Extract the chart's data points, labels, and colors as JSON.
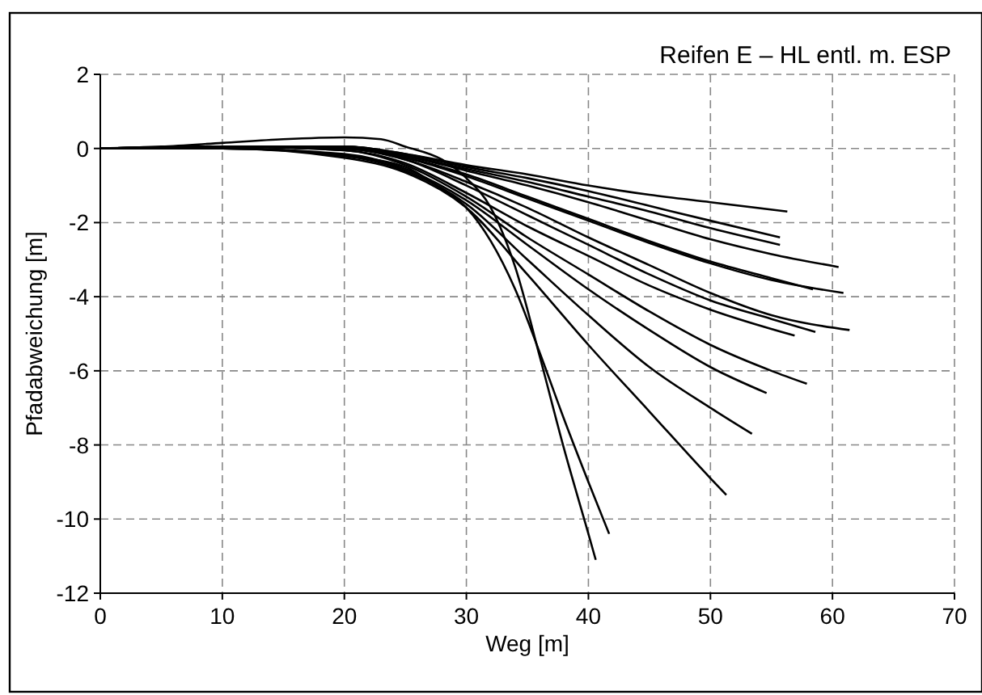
{
  "chart_data": {
    "type": "line",
    "title": "Reifen E – HL entl. m. ESP",
    "xlabel": "Weg [m]",
    "ylabel": "Pfadabweichung [m]",
    "xlim": [
      0,
      70
    ],
    "ylim": [
      -12,
      2
    ],
    "xticks": [
      0,
      10,
      20,
      30,
      40,
      50,
      60,
      70
    ],
    "yticks": [
      -12,
      -10,
      -8,
      -6,
      -4,
      -2,
      0,
      2
    ],
    "grid": true,
    "marker": "none",
    "line_style": "solid",
    "series": [
      {
        "color": "#000000",
        "x": [
          0,
          10,
          20,
          25,
          30,
          35,
          40,
          45,
          50,
          56.3
        ],
        "values": [
          0,
          0.05,
          0.05,
          -0.15,
          -0.45,
          -0.7,
          -1.0,
          -1.25,
          -1.45,
          -1.7
        ]
      },
      {
        "color": "#000000",
        "x": [
          0,
          10,
          20,
          25,
          30,
          35,
          40,
          45,
          50,
          55.7
        ],
        "values": [
          0,
          0.05,
          0.05,
          -0.15,
          -0.5,
          -0.8,
          -1.15,
          -1.55,
          -1.95,
          -2.4
        ]
      },
      {
        "color": "#000000",
        "x": [
          0,
          10,
          20,
          25,
          30,
          35,
          40,
          45,
          50,
          55.7
        ],
        "values": [
          0,
          0.05,
          0.05,
          -0.2,
          -0.55,
          -0.9,
          -1.3,
          -1.7,
          -2.15,
          -2.6
        ]
      },
      {
        "color": "#000000",
        "x": [
          0,
          10,
          20,
          25,
          30,
          35,
          40,
          45,
          50,
          55,
          60.5
        ],
        "values": [
          0,
          0.05,
          0.05,
          -0.2,
          -0.6,
          -1.0,
          -1.45,
          -1.95,
          -2.45,
          -2.85,
          -3.2
        ]
      },
      {
        "color": "#000000",
        "x": [
          0,
          10,
          20,
          25,
          30,
          35,
          40,
          45,
          50,
          55,
          58.4
        ],
        "values": [
          0,
          0.05,
          0.0,
          -0.25,
          -0.7,
          -1.3,
          -1.9,
          -2.5,
          -3.05,
          -3.5,
          -3.8
        ]
      },
      {
        "color": "#000000",
        "x": [
          0,
          10,
          20,
          25,
          30,
          35,
          40,
          45,
          50,
          55,
          60.9
        ],
        "values": [
          0,
          0.05,
          0.0,
          -0.25,
          -0.75,
          -1.35,
          -1.95,
          -2.55,
          -3.1,
          -3.55,
          -3.9
        ]
      },
      {
        "color": "#000000",
        "x": [
          0,
          10,
          20,
          25,
          30,
          35,
          40,
          45,
          50,
          55,
          61.4
        ],
        "values": [
          0,
          0.05,
          0.0,
          -0.3,
          -0.9,
          -1.6,
          -2.4,
          -3.15,
          -3.9,
          -4.5,
          -4.9
        ]
      },
      {
        "color": "#000000",
        "x": [
          0,
          10,
          20,
          25,
          30,
          35,
          40,
          45,
          50,
          55,
          58.6
        ],
        "values": [
          0,
          0.05,
          0.0,
          -0.3,
          -1.0,
          -1.8,
          -2.6,
          -3.4,
          -4.1,
          -4.6,
          -4.95
        ]
      },
      {
        "color": "#000000",
        "x": [
          0,
          10,
          20,
          25,
          30,
          35,
          40,
          45,
          50,
          56.9
        ],
        "values": [
          0,
          0.05,
          -0.05,
          -0.4,
          -1.2,
          -2.1,
          -2.9,
          -3.7,
          -4.35,
          -5.05
        ]
      },
      {
        "color": "#000000",
        "x": [
          0,
          10,
          20,
          25,
          30,
          35,
          40,
          45,
          50,
          55,
          57.9
        ],
        "values": [
          0,
          0.05,
          -0.05,
          -0.45,
          -1.3,
          -2.4,
          -3.4,
          -4.4,
          -5.3,
          -6.0,
          -6.35
        ]
      },
      {
        "color": "#000000",
        "x": [
          0,
          10,
          20,
          25,
          30,
          35,
          40,
          45,
          50,
          54.6
        ],
        "values": [
          0,
          0.0,
          -0.15,
          -0.55,
          -1.4,
          -2.6,
          -3.8,
          -4.9,
          -5.9,
          -6.6
        ]
      },
      {
        "color": "#000000",
        "x": [
          0,
          10,
          20,
          25,
          30,
          35,
          40,
          45,
          50,
          53.4
        ],
        "values": [
          0,
          0.0,
          -0.2,
          -0.6,
          -1.5,
          -3.0,
          -4.5,
          -5.9,
          -7.0,
          -7.7
        ]
      },
      {
        "color": "#000000",
        "x": [
          0,
          10,
          20,
          25,
          30,
          35,
          40,
          45,
          50,
          51.3
        ],
        "values": [
          0,
          0.0,
          -0.25,
          -0.65,
          -1.6,
          -3.4,
          -5.3,
          -7.1,
          -8.9,
          -9.35
        ]
      },
      {
        "color": "#000000",
        "x": [
          0,
          10,
          20,
          25,
          28,
          30,
          32,
          34,
          36,
          38,
          40,
          41.7
        ],
        "values": [
          0,
          0.0,
          -0.2,
          -0.5,
          -1.1,
          -1.6,
          -2.5,
          -3.8,
          -5.5,
          -7.3,
          -9.0,
          -10.4
        ]
      },
      {
        "color": "#000000",
        "x": [
          0,
          5,
          10,
          15,
          20,
          23,
          25,
          28,
          30,
          32,
          34,
          36,
          38,
          40,
          40.6
        ],
        "values": [
          0,
          0.05,
          0.15,
          0.25,
          0.3,
          0.25,
          0.05,
          -0.3,
          -0.8,
          -1.6,
          -3.2,
          -5.6,
          -8.1,
          -10.4,
          -11.1
        ]
      }
    ]
  }
}
